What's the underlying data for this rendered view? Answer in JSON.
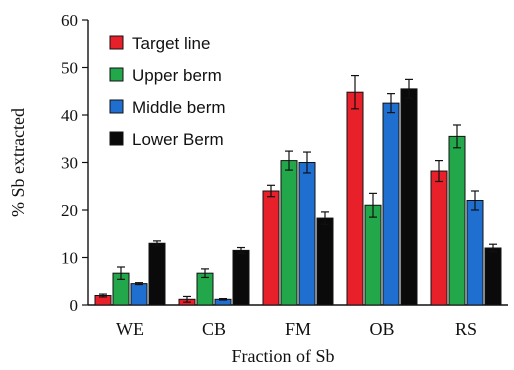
{
  "chart_data": {
    "type": "bar",
    "title": "",
    "xlabel": "Fraction of Sb",
    "ylabel": "% Sb extracted",
    "ylim": [
      0,
      60
    ],
    "yticks": [
      0,
      10,
      20,
      30,
      40,
      50,
      60
    ],
    "grid": false,
    "legend_position": "top-left",
    "categories": [
      "WE",
      "CB",
      "FM",
      "OB",
      "RS"
    ],
    "series": [
      {
        "name": "Target line",
        "color": "#e8202a",
        "values": [
          2,
          1.2,
          24,
          44.8,
          28.2
        ],
        "errors": [
          0.3,
          0.6,
          1.2,
          3.5,
          2.2
        ]
      },
      {
        "name": "Upper berm",
        "color": "#22a84a",
        "values": [
          6.7,
          6.7,
          30.4,
          21,
          35.5
        ],
        "errors": [
          1.3,
          0.9,
          2.0,
          2.5,
          2.4
        ]
      },
      {
        "name": "Middle berm",
        "color": "#1f6fd0",
        "values": [
          4.5,
          1.2,
          30,
          42.5,
          22
        ],
        "errors": [
          0.2,
          0.15,
          2.2,
          2.0,
          2.0
        ]
      },
      {
        "name": "Lower Berm",
        "color": "#0a0a0a",
        "values": [
          13,
          11.5,
          18.3,
          45.5,
          12
        ],
        "errors": [
          0.5,
          0.6,
          1.3,
          2.0,
          0.8
        ]
      }
    ]
  }
}
